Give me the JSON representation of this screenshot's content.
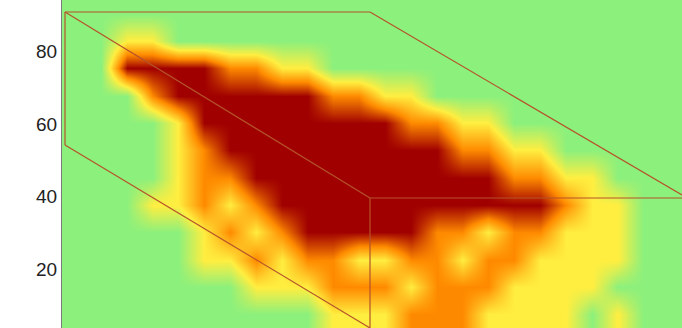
{
  "chart_data": {
    "type": "heatmap",
    "tick_labels": "y",
    "ylim": [
      4,
      94
    ],
    "yticks": [
      20,
      40,
      60,
      80
    ],
    "zlim": [
      0,
      3
    ],
    "y": [
      7.75,
      15.25,
      22.75,
      30.25,
      37.75,
      45.25,
      52.75,
      60.25,
      67.75,
      75.25,
      82.75,
      90.25
    ],
    "cells": [
      [
        0,
        0,
        0,
        0,
        0,
        0,
        0,
        0,
        0,
        0,
        1,
        1,
        1,
        2,
        2,
        2,
        1,
        1,
        1,
        1,
        0,
        1,
        0,
        0
      ],
      [
        0,
        0,
        0,
        0,
        0,
        0,
        0,
        1,
        1,
        1,
        2,
        2,
        2,
        1,
        2,
        2,
        2,
        1,
        1,
        1,
        1,
        0,
        0,
        0
      ],
      [
        0,
        0,
        0,
        0,
        0,
        1,
        1,
        2,
        1,
        2,
        2,
        1,
        1,
        2,
        2,
        1,
        2,
        2,
        1,
        1,
        1,
        1,
        0,
        0
      ],
      [
        0,
        0,
        0,
        0,
        0,
        1,
        2,
        1,
        2,
        3,
        3,
        3,
        3,
        3,
        2,
        2,
        1,
        2,
        2,
        1,
        1,
        1,
        0,
        0
      ],
      [
        0,
        0,
        0,
        1,
        1,
        2,
        1,
        2,
        3,
        3,
        3,
        3,
        3,
        3,
        3,
        3,
        3,
        3,
        3,
        2,
        1,
        1,
        0,
        0
      ],
      [
        0,
        0,
        0,
        0,
        1,
        2,
        2,
        3,
        3,
        3,
        3,
        3,
        3,
        3,
        3,
        3,
        3,
        2,
        2,
        1,
        1,
        0,
        0,
        0
      ],
      [
        0,
        0,
        0,
        0,
        1,
        2,
        3,
        3,
        3,
        3,
        3,
        3,
        3,
        3,
        3,
        2,
        2,
        1,
        1,
        0,
        0,
        0,
        0,
        0
      ],
      [
        0,
        0,
        0,
        0,
        1,
        3,
        3,
        3,
        3,
        3,
        3,
        3,
        3,
        2,
        2,
        1,
        1,
        0,
        0,
        0,
        0,
        0,
        0,
        0
      ],
      [
        0,
        0,
        0,
        2,
        3,
        3,
        3,
        3,
        3,
        3,
        2,
        2,
        1,
        1,
        0,
        0,
        0,
        0,
        0,
        0,
        0,
        0,
        0,
        0
      ],
      [
        0,
        0,
        3,
        3,
        3,
        3,
        2,
        2,
        1,
        1,
        0,
        0,
        0,
        0,
        0,
        0,
        0,
        0,
        0,
        0,
        0,
        0,
        0,
        0
      ],
      [
        0,
        0,
        1,
        1,
        0,
        0,
        0,
        0,
        0,
        0,
        0,
        0,
        0,
        0,
        0,
        0,
        0,
        0,
        0,
        0,
        0,
        0,
        0,
        0
      ],
      [
        0,
        0,
        0,
        0,
        0,
        0,
        0,
        0,
        0,
        0,
        0,
        0,
        0,
        0,
        0,
        0,
        0,
        0,
        0,
        0,
        0,
        0,
        0,
        0
      ]
    ]
  }
}
